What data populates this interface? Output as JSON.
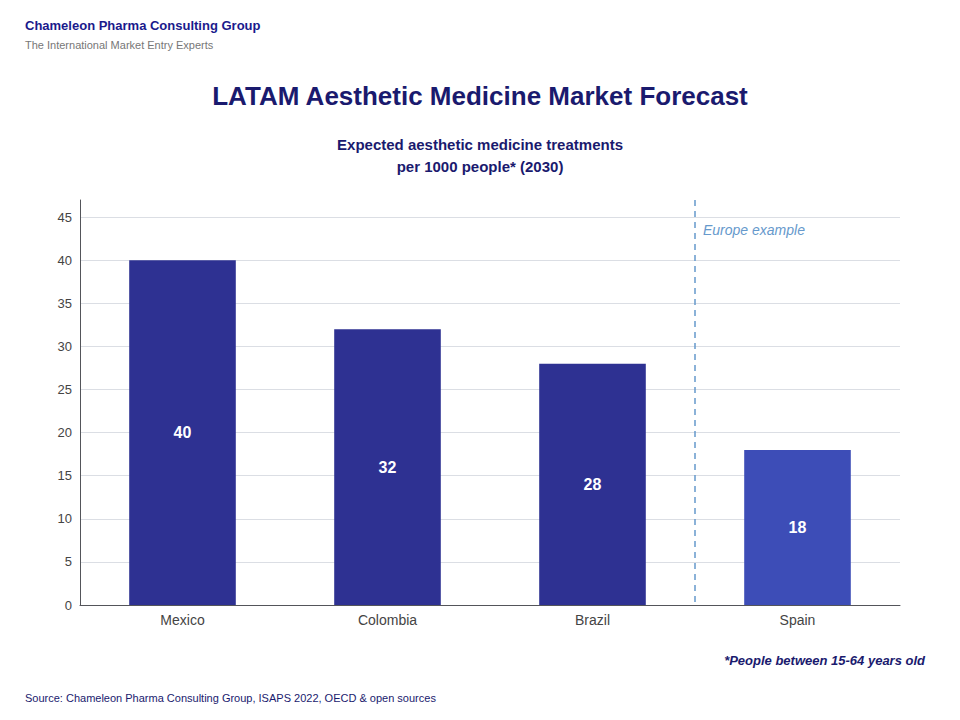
{
  "chart_data": {
    "type": "bar",
    "header": [
      "Chameleon Pharma Consulting Group",
      "The International Market Entry Experts"
    ],
    "title": "LATAM Aesthetic Medicine Market Forecast",
    "subtitle": "Expected aesthetic medicine treatments\nper 1000 people* (2030)",
    "categories": [
      "Mexico",
      "Colombia",
      "Brazil",
      "Spain"
    ],
    "values": [
      40,
      32,
      28,
      18
    ],
    "colors": [
      "#2E3192",
      "#2E3192",
      "#2E3192",
      "#3D4DB7"
    ],
    "ylim": [
      0,
      47
    ],
    "yticks": [
      0,
      5,
      10,
      15,
      20,
      25,
      30,
      35,
      40,
      45
    ],
    "grid": true,
    "data_labels": true,
    "annotations": [
      "Europe example"
    ],
    "footnote": "*People between 15-64 years old",
    "source": "Source: Chameleon Pharma Consulting Group, ISAPS 2022, OECD & open sources"
  }
}
